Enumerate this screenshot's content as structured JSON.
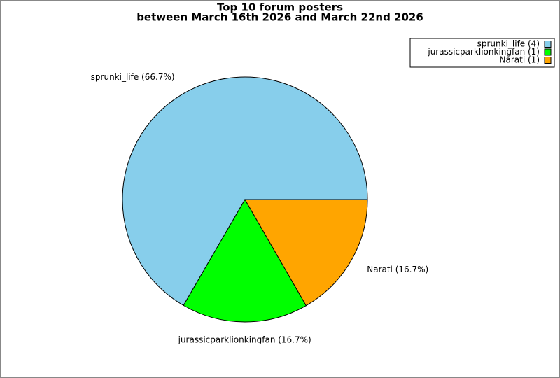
{
  "chart_data": {
    "type": "pie",
    "title": "Top 10 forum posters",
    "subtitle": "between March 16th 2026 and March 22nd 2026",
    "categories": [
      "sprunki_life (4)",
      "jurassicparklionkingfan (1)",
      "Narati (1)"
    ],
    "values": [
      66.7,
      16.7,
      16.7
    ],
    "value_labels": [
      "sprunki_life (66.7%)",
      "jurassicparklionkingfan (16.7%)",
      "Narati (16.7%)"
    ],
    "colors": [
      "#87ceeb",
      "#00ff00",
      "#ffa500"
    ],
    "legend": "upper right"
  }
}
